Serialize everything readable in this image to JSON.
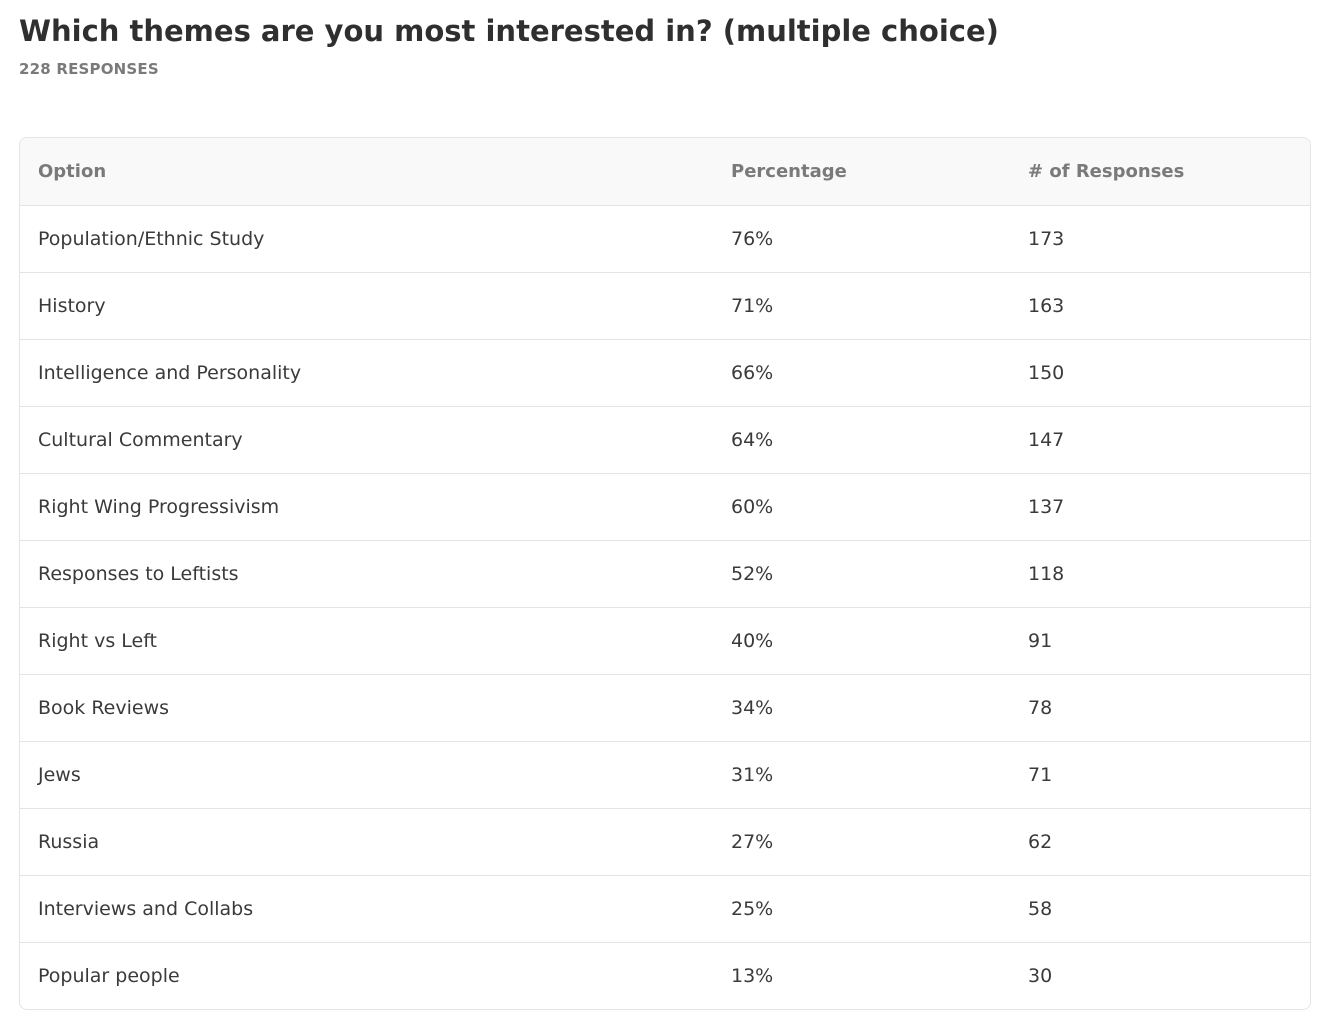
{
  "question": {
    "title": "Which themes are you most interested in? (multiple choice)",
    "responses_label": "228 RESPONSES"
  },
  "table": {
    "columns": {
      "option": "Option",
      "percentage": "Percentage",
      "responses": "# of Responses"
    },
    "rows": [
      {
        "option": "Population/Ethnic Study",
        "percentage": "76%",
        "responses": "173"
      },
      {
        "option": "History",
        "percentage": "71%",
        "responses": "163"
      },
      {
        "option": "Intelligence and Personality",
        "percentage": "66%",
        "responses": "150"
      },
      {
        "option": "Cultural Commentary",
        "percentage": "64%",
        "responses": "147"
      },
      {
        "option": "Right Wing Progressivism",
        "percentage": "60%",
        "responses": "137"
      },
      {
        "option": "Responses to Leftists",
        "percentage": "52%",
        "responses": "118"
      },
      {
        "option": "Right vs Left",
        "percentage": "40%",
        "responses": "91"
      },
      {
        "option": "Book Reviews",
        "percentage": "34%",
        "responses": "78"
      },
      {
        "option": "Jews",
        "percentage": "31%",
        "responses": "71"
      },
      {
        "option": "Russia",
        "percentage": "27%",
        "responses": "62"
      },
      {
        "option": "Interviews and Collabs",
        "percentage": "25%",
        "responses": "58"
      },
      {
        "option": "Popular people",
        "percentage": "13%",
        "responses": "30"
      }
    ]
  }
}
